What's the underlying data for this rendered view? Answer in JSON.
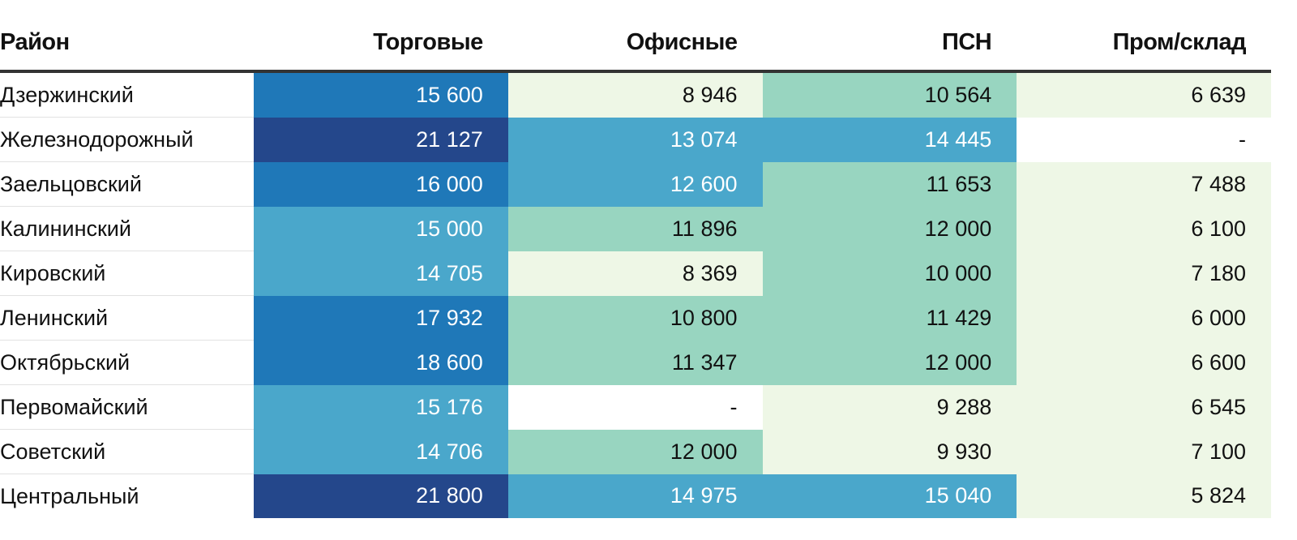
{
  "chart_data": {
    "type": "table",
    "title": "",
    "columns": [
      "Район",
      "Торговые",
      "Офисные",
      "ПСН",
      "Пром/склад"
    ],
    "rows": [
      {
        "district": "Дзержинский",
        "values": [
          15600,
          8946,
          10564,
          6639
        ],
        "display": [
          "15 600",
          "8 946",
          "10 564",
          "6 639"
        ]
      },
      {
        "district": "Железнодорожный",
        "values": [
          21127,
          13074,
          14445,
          null
        ],
        "display": [
          "21 127",
          "13 074",
          "14 445",
          "-"
        ]
      },
      {
        "district": "Заельцовский",
        "values": [
          16000,
          12600,
          11653,
          7488
        ],
        "display": [
          "16 000",
          "12 600",
          "11 653",
          "7 488"
        ]
      },
      {
        "district": "Калининский",
        "values": [
          15000,
          11896,
          12000,
          6100
        ],
        "display": [
          "15 000",
          "11 896",
          "12 000",
          "6 100"
        ]
      },
      {
        "district": "Кировский",
        "values": [
          14705,
          8369,
          10000,
          7180
        ],
        "display": [
          "14 705",
          "8 369",
          "10 000",
          "7 180"
        ]
      },
      {
        "district": "Ленинский",
        "values": [
          17932,
          10800,
          11429,
          6000
        ],
        "display": [
          "17 932",
          "10 800",
          "11 429",
          "6 000"
        ]
      },
      {
        "district": "Октябрьский",
        "values": [
          18600,
          11347,
          12000,
          6600
        ],
        "display": [
          "18 600",
          "11 347",
          "12 000",
          "6 600"
        ]
      },
      {
        "district": "Первомайский",
        "values": [
          15176,
          null,
          9288,
          6545
        ],
        "display": [
          "15 176",
          "-",
          "9 288",
          "6 545"
        ]
      },
      {
        "district": "Советский",
        "values": [
          14706,
          12000,
          9930,
          7100
        ],
        "display": [
          "14 706",
          "12 000",
          "9 930",
          "7 100"
        ]
      },
      {
        "district": "Центральный",
        "values": [
          21800,
          14975,
          15040,
          5824
        ],
        "display": [
          "21 800",
          "14 975",
          "15 040",
          "5 824"
        ]
      }
    ],
    "color_scale": {
      "thresholds": [
        10000,
        12600,
        15500,
        20000
      ],
      "colors": [
        "#eef7e6",
        "#98d5c0",
        "#4aa7cb",
        "#1f78b8",
        "#24478b"
      ],
      "text_colors": [
        "#111111",
        "#111111",
        "#ffffff",
        "#ffffff",
        "#ffffff"
      ],
      "missing_color": "#ffffff"
    }
  }
}
